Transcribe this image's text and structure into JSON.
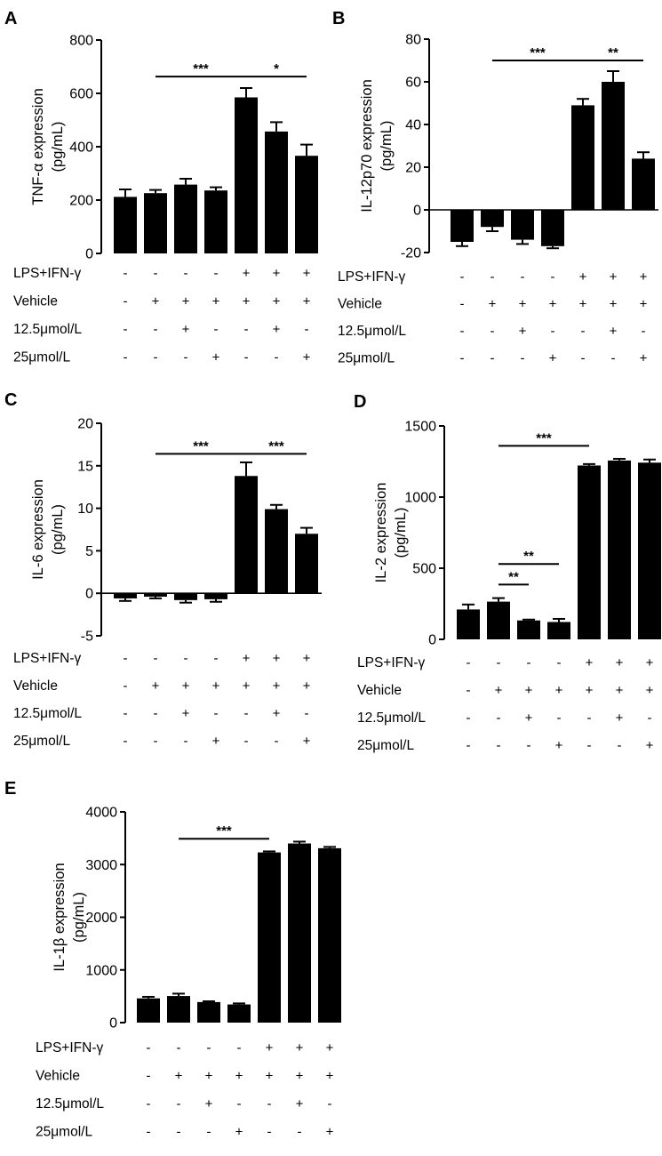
{
  "panels": [
    {
      "letter": "A",
      "ylabel_lines": [
        "TNF-α expression",
        "(pg/mL)"
      ],
      "chart_data": {
        "type": "bar",
        "categories": [
          "1",
          "2",
          "3",
          "4",
          "5",
          "6",
          "7"
        ],
        "values": [
          212,
          226,
          258,
          236,
          585,
          457,
          366
        ],
        "errors": [
          28,
          12,
          22,
          12,
          35,
          35,
          42
        ],
        "ylim": [
          0,
          800
        ],
        "yticks": [
          0,
          200,
          400,
          600,
          800
        ],
        "grid": false,
        "significance": [
          {
            "from": 2,
            "to": 5,
            "label": "***",
            "y": 663
          },
          {
            "from": 5,
            "to": 7,
            "label": "*",
            "y": 663
          }
        ]
      },
      "conditions": [
        {
          "label": "LPS+IFN-γ",
          "signs": [
            "-",
            "-",
            "-",
            "-",
            "+",
            "+",
            "+"
          ]
        },
        {
          "label": "Vehicle",
          "signs": [
            "-",
            "+",
            "+",
            "+",
            "+",
            "+",
            "+"
          ]
        },
        {
          "label": "12.5μmol/L",
          "signs": [
            "-",
            "-",
            "+",
            "-",
            "-",
            "+",
            "-"
          ]
        },
        {
          "label": "25μmol/L",
          "signs": [
            "-",
            "-",
            "-",
            "+",
            "-",
            "-",
            "+"
          ]
        }
      ]
    },
    {
      "letter": "B",
      "ylabel_lines": [
        "IL-12p70 expression",
        "(pg/mL)"
      ],
      "chart_data": {
        "type": "bar",
        "categories": [
          "1",
          "2",
          "3",
          "4",
          "5",
          "6",
          "7"
        ],
        "values": [
          -15,
          -8,
          -14,
          -17,
          49,
          60,
          24
        ],
        "errors": [
          2,
          2,
          2,
          1,
          3,
          5,
          3
        ],
        "ylim": [
          -20,
          80
        ],
        "yticks": [
          -20,
          0,
          20,
          40,
          60,
          80
        ],
        "grid": false,
        "significance": [
          {
            "from": 2,
            "to": 5,
            "label": "***",
            "y": 70
          },
          {
            "from": 5,
            "to": 7,
            "label": "**",
            "y": 70
          }
        ]
      },
      "conditions": [
        {
          "label": "LPS+IFN-γ",
          "signs": [
            "-",
            "-",
            "-",
            "-",
            "+",
            "+",
            "+"
          ]
        },
        {
          "label": "Vehicle",
          "signs": [
            "-",
            "+",
            "+",
            "+",
            "+",
            "+",
            "+"
          ]
        },
        {
          "label": "12.5μmol/L",
          "signs": [
            "-",
            "-",
            "+",
            "-",
            "-",
            "+",
            "-"
          ]
        },
        {
          "label": "25μmol/L",
          "signs": [
            "-",
            "-",
            "-",
            "+",
            "-",
            "-",
            "+"
          ]
        }
      ]
    },
    {
      "letter": "C",
      "ylabel_lines": [
        "IL-6  expression",
        "(pg/mL)"
      ],
      "chart_data": {
        "type": "bar",
        "categories": [
          "1",
          "2",
          "3",
          "4",
          "5",
          "6",
          "7"
        ],
        "values": [
          -0.6,
          -0.4,
          -0.8,
          -0.7,
          13.8,
          9.9,
          7.0
        ],
        "errors": [
          0.3,
          0.2,
          0.3,
          0.3,
          1.6,
          0.5,
          0.7
        ],
        "ylim": [
          -5,
          20
        ],
        "yticks": [
          -5,
          0,
          5,
          10,
          15,
          20
        ],
        "grid": false,
        "significance": [
          {
            "from": 2,
            "to": 5,
            "label": "***",
            "y": 16.4
          },
          {
            "from": 5,
            "to": 7,
            "label": "***",
            "y": 16.4
          }
        ]
      },
      "conditions": [
        {
          "label": "LPS+IFN-γ",
          "signs": [
            "-",
            "-",
            "-",
            "-",
            "+",
            "+",
            "+"
          ]
        },
        {
          "label": "Vehicle",
          "signs": [
            "-",
            "+",
            "+",
            "+",
            "+",
            "+",
            "+"
          ]
        },
        {
          "label": "12.5μmol/L",
          "signs": [
            "-",
            "-",
            "+",
            "-",
            "-",
            "+",
            "-"
          ]
        },
        {
          "label": "25μmol/L",
          "signs": [
            "-",
            "-",
            "-",
            "+",
            "-",
            "-",
            "+"
          ]
        }
      ]
    },
    {
      "letter": "D",
      "ylabel_lines": [
        "IL-2  expression",
        "(pg/mL)"
      ],
      "chart_data": {
        "type": "bar",
        "categories": [
          "1",
          "2",
          "3",
          "4",
          "5",
          "6",
          "7"
        ],
        "values": [
          210,
          265,
          133,
          122,
          1222,
          1257,
          1242
        ],
        "errors": [
          35,
          25,
          6,
          22,
          10,
          12,
          22
        ],
        "ylim": [
          0,
          1500
        ],
        "yticks": [
          0,
          500,
          1000,
          1500
        ],
        "grid": false,
        "significance": [
          {
            "from": 2,
            "to": 5,
            "label": "***",
            "y": 1360
          },
          {
            "from": 2,
            "to": 4,
            "label": "**",
            "y": 530
          },
          {
            "from": 2,
            "to": 3,
            "label": "**",
            "y": 385
          }
        ]
      },
      "conditions": [
        {
          "label": "LPS+IFN-γ",
          "signs": [
            "-",
            "-",
            "-",
            "-",
            "+",
            "+",
            "+"
          ]
        },
        {
          "label": "Vehicle",
          "signs": [
            "-",
            "+",
            "+",
            "+",
            "+",
            "+",
            "+"
          ]
        },
        {
          "label": "12.5μmol/L",
          "signs": [
            "-",
            "-",
            "+",
            "-",
            "-",
            "+",
            "-"
          ]
        },
        {
          "label": "25μmol/L",
          "signs": [
            "-",
            "-",
            "-",
            "+",
            "-",
            "-",
            "+"
          ]
        }
      ]
    },
    {
      "letter": "E",
      "ylabel_lines": [
        "IL-1β expression",
        "(pg/mL)"
      ],
      "chart_data": {
        "type": "bar",
        "categories": [
          "1",
          "2",
          "3",
          "4",
          "5",
          "6",
          "7"
        ],
        "values": [
          460,
          505,
          390,
          345,
          3230,
          3400,
          3310
        ],
        "errors": [
          30,
          45,
          15,
          20,
          20,
          35,
          25
        ],
        "ylim": [
          0,
          4000
        ],
        "yticks": [
          0,
          1000,
          2000,
          3000,
          4000
        ],
        "grid": false,
        "significance": [
          {
            "from": 2,
            "to": 5,
            "label": "***",
            "y": 3490
          }
        ]
      },
      "conditions": [
        {
          "label": "LPS+IFN-γ",
          "signs": [
            "-",
            "-",
            "-",
            "-",
            "+",
            "+",
            "+"
          ]
        },
        {
          "label": "Vehicle",
          "signs": [
            "-",
            "+",
            "+",
            "+",
            "+",
            "+",
            "+"
          ]
        },
        {
          "label": "12.5μmol/L",
          "signs": [
            "-",
            "-",
            "+",
            "-",
            "-",
            "+",
            "-"
          ]
        },
        {
          "label": "25μmol/L",
          "signs": [
            "-",
            "-",
            "-",
            "+",
            "-",
            "-",
            "+"
          ]
        }
      ]
    }
  ]
}
